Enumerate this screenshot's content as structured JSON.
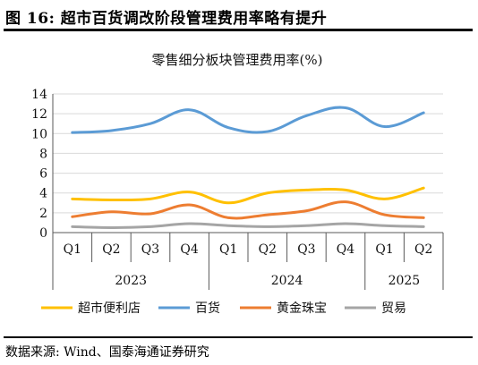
{
  "figure": {
    "title": "图 16:  超市百货调改阶段管理费用率略有提升",
    "source": "数据来源: Wind、国泰海通证券研究"
  },
  "chart_data": {
    "type": "line",
    "title": "零售细分板块管理费用率(%)",
    "categories": [
      "Q1",
      "Q2",
      "Q3",
      "Q4",
      "Q1",
      "Q2",
      "Q3",
      "Q4",
      "Q1",
      "Q2"
    ],
    "groups": [
      {
        "label": "2023",
        "start": 0,
        "end": 4
      },
      {
        "label": "2024",
        "start": 4,
        "end": 8
      },
      {
        "label": "2025",
        "start": 8,
        "end": 10
      }
    ],
    "ylim": [
      0,
      14
    ],
    "yticks": [
      0,
      2,
      4,
      6,
      8,
      10,
      12,
      14
    ],
    "grid": true,
    "legend_position": "bottom",
    "series": [
      {
        "name": "超市便利店",
        "color": "#FFC000",
        "values": [
          3.4,
          3.3,
          3.4,
          4.1,
          3.0,
          4.0,
          4.3,
          4.3,
          3.4,
          4.5
        ]
      },
      {
        "name": "百货",
        "color": "#5B9BD5",
        "values": [
          10.1,
          10.3,
          11.0,
          12.4,
          10.6,
          10.2,
          11.8,
          12.6,
          10.7,
          12.1
        ]
      },
      {
        "name": "黄金珠宝",
        "color": "#ED7D31",
        "values": [
          1.6,
          2.1,
          1.9,
          2.8,
          1.5,
          1.8,
          2.2,
          3.1,
          1.8,
          1.5
        ]
      },
      {
        "name": "贸易",
        "color": "#A5A5A5",
        "values": [
          0.6,
          0.5,
          0.6,
          0.9,
          0.7,
          0.6,
          0.7,
          0.9,
          0.7,
          0.6
        ]
      }
    ]
  }
}
